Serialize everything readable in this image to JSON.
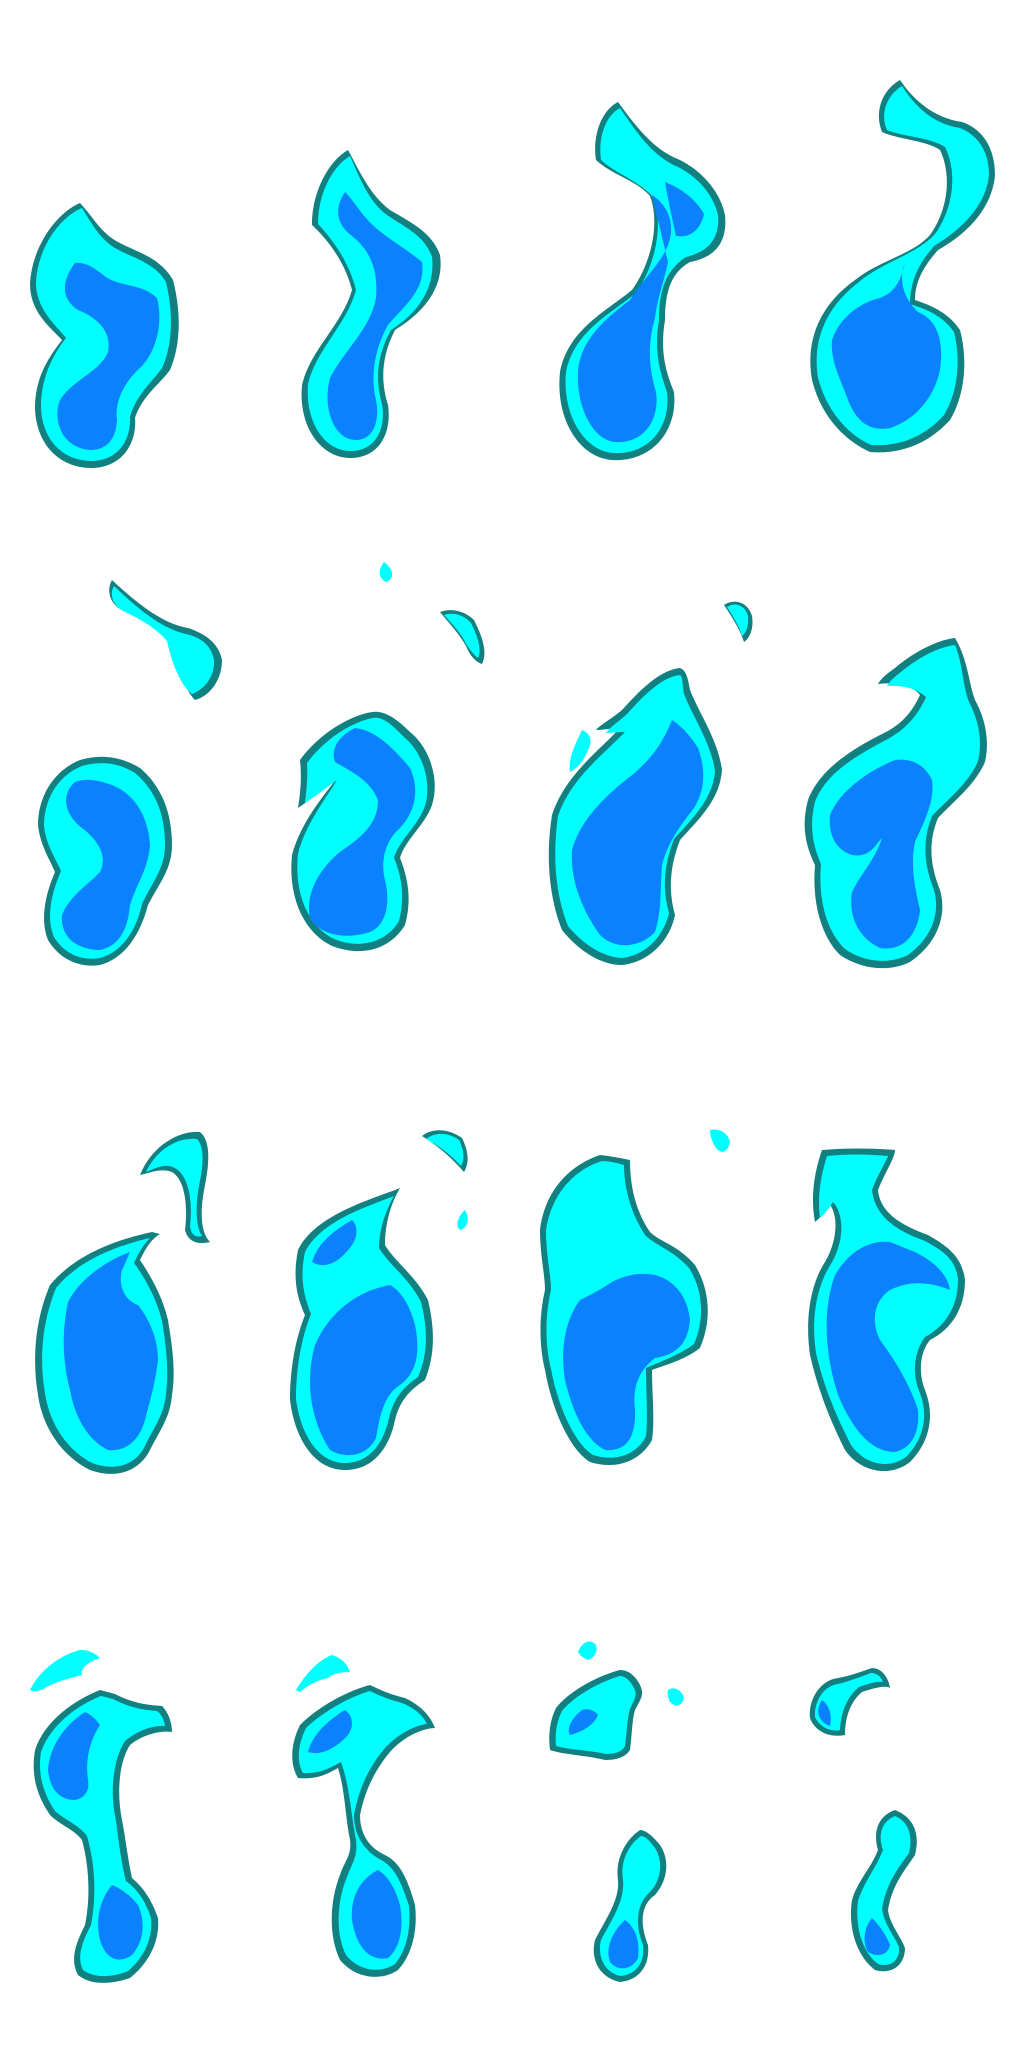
{
  "sprite_sheet": {
    "subject": "blue flame",
    "rows": 4,
    "columns": 4,
    "frame_count": 16,
    "background": "#ffffff",
    "colors": {
      "outline": "#128080",
      "outer_flame": "#00ffff",
      "inner_core": "#0a82ff"
    }
  }
}
